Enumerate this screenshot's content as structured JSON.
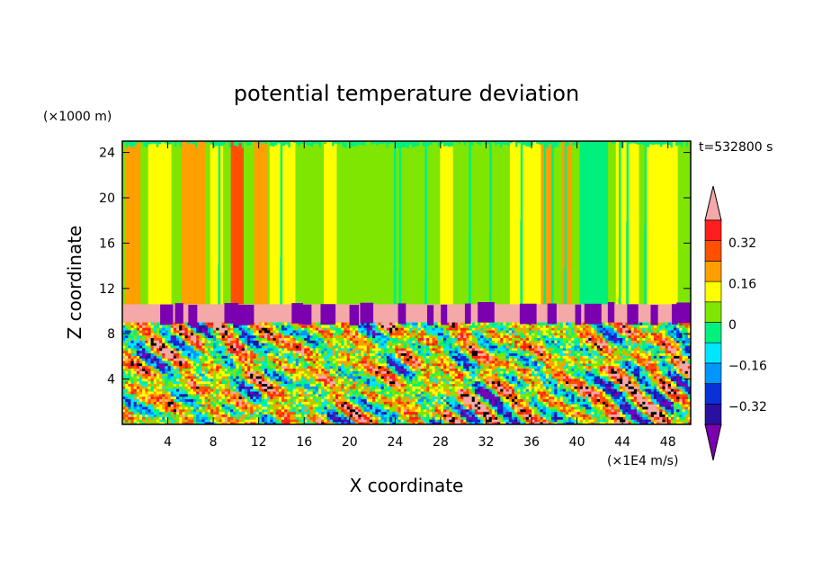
{
  "chart_data": {
    "type": "heatmap",
    "title": "potential temperature deviation",
    "xlabel": "X coordinate",
    "ylabel": "Z coordinate",
    "x_unit": "(×1E4 m/s)",
    "y_unit": "(×1000 m)",
    "time_label": "t=532800 s",
    "xlim": [
      0,
      50
    ],
    "ylim": [
      0,
      25
    ],
    "xticks": [
      "4",
      "8",
      "12",
      "16",
      "20",
      "24",
      "28",
      "32",
      "36",
      "40",
      "44",
      "48"
    ],
    "yticks": [
      "4",
      "8",
      "12",
      "16",
      "20",
      "24"
    ],
    "colorbar": {
      "levels": [
        -0.48,
        -0.4,
        -0.32,
        -0.24,
        -0.16,
        -0.08,
        0,
        0.08,
        0.16,
        0.24,
        0.32,
        0.4,
        0.48
      ],
      "labels": [
        "0.32",
        "0.16",
        "0",
        "−0.16",
        "−0.32"
      ],
      "colors": [
        "#7a00b0",
        "#2a0fa0",
        "#0a30d8",
        "#0096ff",
        "#00e6ff",
        "#00f07e",
        "#7ee600",
        "#ffff00",
        "#ffa000",
        "#ff5000",
        "#ff1d1d",
        "#f4a8a8"
      ],
      "extend": "both"
    }
  }
}
